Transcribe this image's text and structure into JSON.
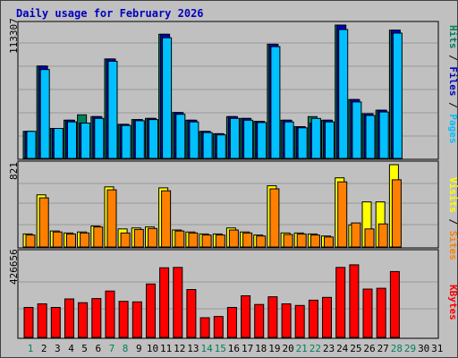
{
  "title": "Daily usage for February 2026",
  "colors": {
    "background": "#c0c0c0",
    "panel": "#c0c0c0",
    "grid": "#999999",
    "title": "#0000c0",
    "hits": "#00805c",
    "files": "#0000c0",
    "pages": "#00c0ff",
    "visits": "#ffff00",
    "sites": "#ff8000",
    "kbytes": "#ff0000",
    "day_normal": "#000000",
    "day_weekend": "#00805c"
  },
  "labels": {
    "top_max": "113307",
    "mid_max": "821",
    "bot_max": "426656",
    "pages_word": "Pages",
    "files_word": "Files",
    "hits_word": "Hits",
    "sites_word": "Sites",
    "visits_word": "Visits",
    "kbytes_word": "KBytes",
    "slash": " / "
  },
  "chart_data": {
    "type": "bar",
    "title": "Daily usage for February 2026",
    "categories": [
      "1",
      "2",
      "3",
      "4",
      "5",
      "6",
      "7",
      "8",
      "9",
      "10",
      "11",
      "12",
      "13",
      "14",
      "15",
      "16",
      "17",
      "18",
      "19",
      "20",
      "21",
      "22",
      "23",
      "24",
      "25",
      "26",
      "27",
      "28",
      "29",
      "30",
      "31"
    ],
    "weekend_days": [
      "1",
      "7",
      "8",
      "14",
      "15",
      "21",
      "22",
      "28",
      "29"
    ],
    "panels": [
      {
        "name": "top",
        "ylim": [
          0,
          113307
        ],
        "series": [
          {
            "name": "Hits",
            "color": "#00805c",
            "values": [
              23000,
              78500,
              25500,
              32500,
              37000,
              35500,
              84500,
              29000,
              33000,
              34000,
              105500,
              39000,
              32500,
              23000,
              21000,
              35500,
              34000,
              31500,
              97000,
              32500,
              27000,
              35500,
              32500,
              114000,
              50000,
              38000,
              41000,
              109000,
              null,
              null,
              null
            ]
          },
          {
            "name": "Files",
            "color": "#0000c0",
            "values": [
              23000,
              78500,
              25500,
              32500,
              30000,
              35500,
              84500,
              29000,
              33000,
              34000,
              105500,
              39000,
              32500,
              23000,
              21000,
              35500,
              34000,
              31500,
              97000,
              32500,
              27000,
              30000,
              32500,
              114000,
              50000,
              38000,
              41000,
              109000,
              null,
              null,
              null
            ]
          },
          {
            "name": "Pages",
            "color": "#00c0ff",
            "values": [
              23000,
              75500,
              25500,
              31000,
              30000,
              34000,
              82500,
              28000,
              32000,
              33000,
              102500,
              37500,
              31000,
              22000,
              20000,
              34000,
              32500,
              30500,
              95000,
              31000,
              26000,
              34000,
              31000,
              109500,
              48000,
              36500,
              39500,
              106500,
              null,
              null,
              null
            ]
          }
        ]
      },
      {
        "name": "mid",
        "ylim": [
          0,
          821
        ],
        "series": [
          {
            "name": "Visits",
            "color": "#ffff00",
            "values": [
              130,
              520,
              160,
              140,
              150,
              210,
              600,
              180,
              190,
              200,
              590,
              170,
              150,
              130,
              130,
              190,
              150,
              120,
              610,
              140,
              140,
              130,
              110,
              690,
              220,
              450,
              450,
              830,
              null,
              null,
              null
            ]
          },
          {
            "name": "Sites",
            "color": "#ff8000",
            "values": [
              120,
              490,
              150,
              130,
              140,
              200,
              570,
              140,
              175,
              185,
              560,
              160,
              140,
              120,
              120,
              170,
              140,
              110,
              580,
              125,
              130,
              120,
              100,
              650,
              240,
              180,
              230,
              670,
              null,
              null,
              null
            ]
          }
        ]
      },
      {
        "name": "bot",
        "ylim": [
          0,
          426656
        ],
        "series": [
          {
            "name": "KBytes",
            "color": "#ff0000",
            "values": [
              152000,
              170000,
              152000,
              195000,
              176000,
              197000,
              235000,
              183000,
              180000,
              271000,
              353000,
              355000,
              243000,
              100000,
              106000,
              152000,
              211000,
              167000,
              206000,
              170000,
              162000,
              189000,
              203000,
              355000,
              368000,
              245000,
              249000,
              334000,
              null,
              null,
              null
            ]
          }
        ]
      }
    ]
  }
}
